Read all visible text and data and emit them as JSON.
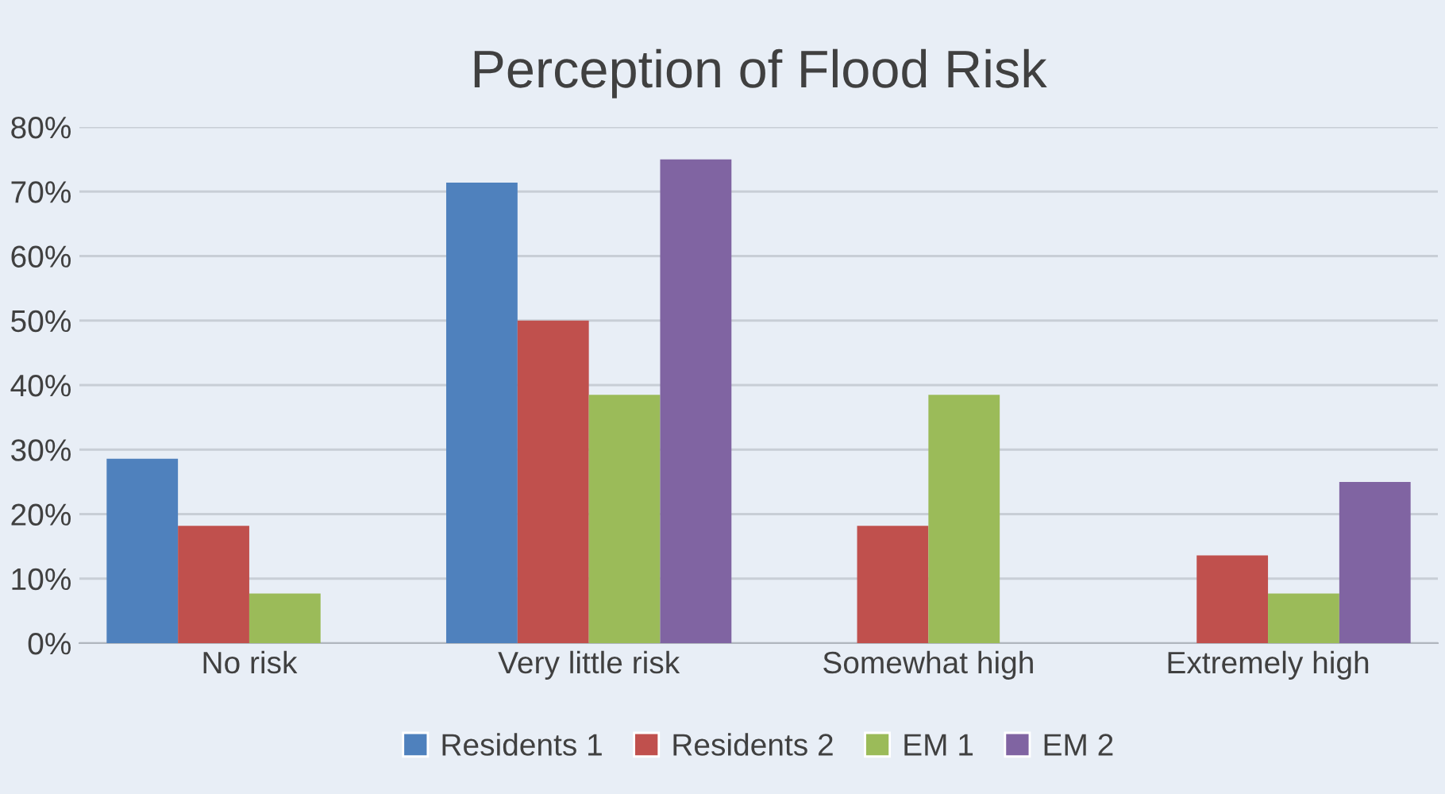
{
  "chart_data": {
    "type": "bar",
    "title": "Perception of Flood Risk",
    "categories": [
      "No risk",
      "Very little risk",
      "Somewhat high",
      "Extremely high"
    ],
    "series": [
      {
        "name": "Residents 1",
        "color": "#4f81bd",
        "values": [
          28.6,
          71.4,
          null,
          null
        ]
      },
      {
        "name": "Residents 2",
        "color": "#c0504d",
        "values": [
          18.2,
          50,
          18.2,
          13.6
        ]
      },
      {
        "name": "EM 1",
        "color": "#9bbb59",
        "values": [
          7.7,
          38.5,
          38.5,
          7.7
        ]
      },
      {
        "name": "EM 2",
        "color": "#8064a2",
        "values": [
          null,
          75,
          null,
          25
        ]
      }
    ],
    "ylim": [
      0,
      80
    ],
    "yticks": [
      {
        "value": 0,
        "label": "0%"
      },
      {
        "value": 10,
        "label": "10%"
      },
      {
        "value": 20,
        "label": "20%"
      },
      {
        "value": 30,
        "label": "30%"
      },
      {
        "value": 40,
        "label": "40%"
      },
      {
        "value": 50,
        "label": "50%"
      },
      {
        "value": 60,
        "label": "60%"
      },
      {
        "value": 70,
        "label": "70%"
      },
      {
        "value": 80,
        "label": "80%"
      }
    ],
    "grid": "y",
    "legend": "bottom"
  }
}
